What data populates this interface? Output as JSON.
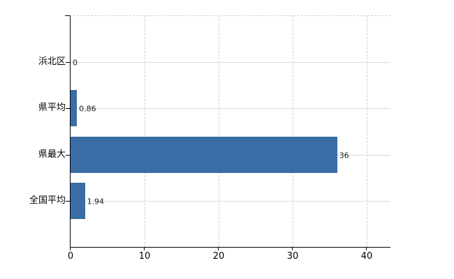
{
  "chart_data": {
    "type": "bar",
    "orientation": "horizontal",
    "title": "",
    "xlabel": "",
    "ylabel": "",
    "legend_position": "none",
    "categories": [
      "浜北区",
      "県平均",
      "県最大",
      "全国平均"
    ],
    "values": [
      0,
      0.86,
      36,
      1.94
    ],
    "value_labels": [
      "0",
      "0.86",
      "36",
      "1.94"
    ],
    "x_ticks": [
      0,
      10,
      20,
      30,
      40
    ],
    "x_tick_labels": [
      "0",
      "10",
      "20",
      "30",
      "40"
    ],
    "xlim": [
      0,
      43.2
    ],
    "grid": {
      "vertical_style": "dashed",
      "horizontal_style": "solid"
    },
    "colors": {
      "bar": "#3a6ca6",
      "axis": "#000000",
      "grid_solid": "#d9dcd4",
      "grid_dashed": "#d1cdd5",
      "text": "#000000",
      "background": "#ffffff"
    }
  }
}
